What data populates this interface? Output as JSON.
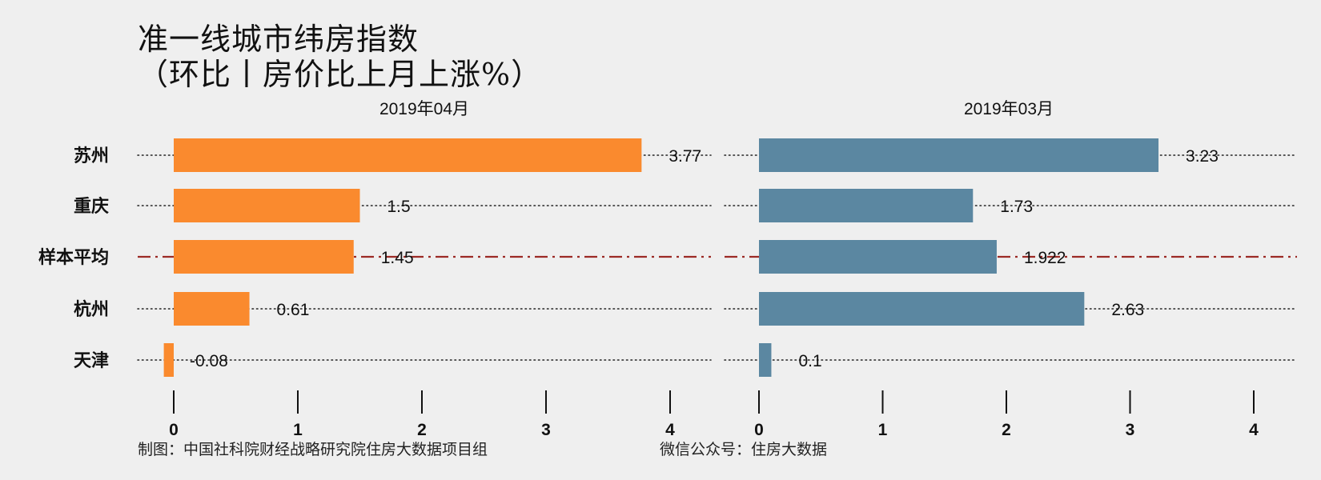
{
  "title": {
    "line1": "准一线城市纬房指数",
    "line2": "（环比丨房价比上月上涨%）"
  },
  "footer": {
    "left": "制图：中国社科院财经战略研究院住房大数据项目组",
    "right": "微信公众号：住房大数据"
  },
  "colors": {
    "background": "#efefef",
    "panel1_bar": "#fa8a2e",
    "panel2_bar": "#5b87a1",
    "average_line": "#9c2a25",
    "dotted_line": "#222222"
  },
  "chart_data": [
    {
      "type": "bar",
      "orientation": "horizontal",
      "panel_title": "2019年04月",
      "categories": [
        "苏州",
        "重庆",
        "样本平均",
        "杭州",
        "天津"
      ],
      "values": [
        3.77,
        1.5,
        1.45,
        0.61,
        -0.08
      ],
      "value_labels": [
        "3.77",
        "1.5",
        "1.45",
        "0.61",
        "-0.08"
      ],
      "xlim": [
        0,
        4
      ],
      "xticks": [
        "0",
        "1",
        "2",
        "3",
        "4"
      ],
      "average_category": "样本平均"
    },
    {
      "type": "bar",
      "orientation": "horizontal",
      "panel_title": "2019年03月",
      "categories": [
        "苏州",
        "重庆",
        "样本平均",
        "杭州",
        "天津"
      ],
      "values": [
        3.23,
        1.73,
        1.922,
        2.63,
        0.1
      ],
      "value_labels": [
        "3.23",
        "1.73",
        "1.922",
        "2.63",
        "0.1"
      ],
      "xlim": [
        0,
        4
      ],
      "xticks": [
        "0",
        "1",
        "2",
        "3",
        "4"
      ],
      "average_category": "样本平均"
    }
  ]
}
